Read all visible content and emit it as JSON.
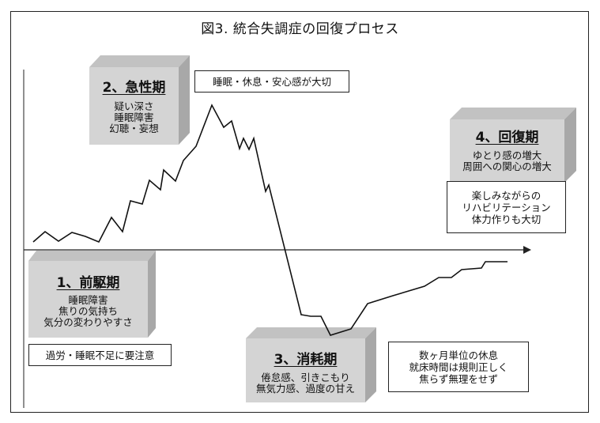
{
  "title": "図3. 統合失調症の回復プロセス",
  "phases": [
    {
      "id": "prodromal",
      "title": "1、前駆期",
      "lines": [
        "睡眠障害",
        "焦りの気持ち",
        "気分の変わりやすさ"
      ]
    },
    {
      "id": "acute",
      "title": "2、急性期",
      "lines": [
        "疑い深さ",
        "睡眠障害",
        "幻聴・妄想"
      ]
    },
    {
      "id": "exhaustion",
      "title": "3、消耗期",
      "lines": [
        "倦怠感、引きこもり",
        "無気力感、過度の甘え"
      ]
    },
    {
      "id": "recovery",
      "title": "4、回復期",
      "lines": [
        "ゆとり感の増大",
        "周囲への関心の増大"
      ]
    }
  ],
  "notes": {
    "prodromal": [
      "過労・睡眠不足に要注意"
    ],
    "acute": [
      "睡眠・休息・安心感が大切"
    ],
    "exhaustion": [
      "数ヶ月単位の休息",
      "就床時間は規則正しく",
      "焦らず無理をせず"
    ],
    "recovery": [
      "楽しみながらの",
      "リハビリテーション",
      "体力作りも大切"
    ]
  },
  "colors": {
    "box_face": "#d4d4d4",
    "box_top": "#c2c2c2",
    "box_side": "#a8a8a8",
    "line": "#111111"
  }
}
